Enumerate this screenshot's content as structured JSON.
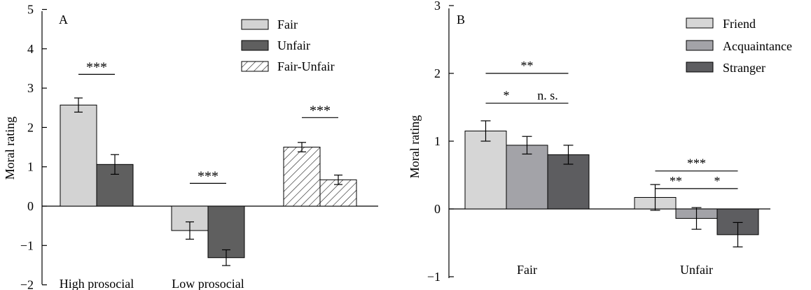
{
  "chart_data": [
    {
      "panel_label": "A",
      "type": "bar",
      "ylabel": "Moral rating",
      "ylim": [
        -2,
        5
      ],
      "yticks": [
        "5",
        "4",
        "3",
        "2",
        "1",
        "0",
        "−1",
        "−2"
      ],
      "ytick_values": [
        5,
        4,
        3,
        2,
        1,
        0,
        -1,
        -2
      ],
      "groups": [
        {
          "label": "High prosocial",
          "bars": [
            {
              "series": "Fair",
              "value": 2.57,
              "err": 0.18
            },
            {
              "series": "Unfair",
              "value": 1.06,
              "err": 0.25
            }
          ]
        },
        {
          "label": "Low prosocial",
          "bars": [
            {
              "series": "Fair",
              "value": -0.62,
              "err": 0.22
            },
            {
              "series": "Unfair",
              "value": -1.31,
              "err": 0.2
            }
          ]
        },
        {
          "label": "",
          "bars": [
            {
              "series": "Fair-Unfair",
              "value": 1.5,
              "err": 0.12
            },
            {
              "series": "Fair-Unfair",
              "value": 0.67,
              "err": 0.12
            }
          ]
        }
      ],
      "legend": [
        {
          "name": "Fair",
          "color": "#d3d3d3",
          "pattern": false
        },
        {
          "name": "Unfair",
          "color": "#5f5f5f",
          "pattern": false
        },
        {
          "name": "Fair-Unfair",
          "color": "#ffffff",
          "pattern": true
        }
      ],
      "annotations": [
        {
          "text": "***",
          "group": 0,
          "from": 0,
          "to": 1,
          "y": 3.35
        },
        {
          "text": "***",
          "group": 1,
          "from": 0,
          "to": 1,
          "y": 0.58
        },
        {
          "text": "***",
          "group": 2,
          "from": 0,
          "to": 1,
          "y": 2.25
        }
      ]
    },
    {
      "panel_label": "B",
      "type": "bar",
      "ylabel": "Moral rating",
      "ylim": [
        -1,
        3
      ],
      "yticks": [
        "3",
        "2",
        "1",
        "0",
        "−1"
      ],
      "ytick_values": [
        3,
        2,
        1,
        0,
        -1
      ],
      "categories": [
        "Fair",
        "Unfair"
      ],
      "series": [
        {
          "name": "Friend",
          "color": "#d6d6d6",
          "values": [
            1.15,
            0.17
          ],
          "errors": [
            0.15,
            0.19
          ]
        },
        {
          "name": "Acquaintance",
          "color": "#a3a3a8",
          "values": [
            0.94,
            -0.14
          ],
          "errors": [
            0.13,
            0.16
          ]
        },
        {
          "name": "Stranger",
          "color": "#5d5d60",
          "values": [
            0.8,
            -0.38
          ],
          "errors": [
            0.14,
            0.18
          ]
        }
      ],
      "annotations": [
        {
          "text": "**",
          "category": 0,
          "from": 0,
          "to": 2,
          "y": 2.0
        },
        {
          "text": "*",
          "category": 0,
          "from": 0,
          "to": 1,
          "y": 1.56
        },
        {
          "text": "n. s.",
          "category": 0,
          "from": 1,
          "to": 2,
          "y": 1.56
        },
        {
          "text": "***",
          "category": 1,
          "from": 0,
          "to": 2,
          "y": 0.56
        },
        {
          "text": "**",
          "category": 1,
          "from": 0,
          "to": 1,
          "y": 0.3
        },
        {
          "text": "*",
          "category": 1,
          "from": 1,
          "to": 2,
          "y": 0.3
        }
      ]
    }
  ]
}
